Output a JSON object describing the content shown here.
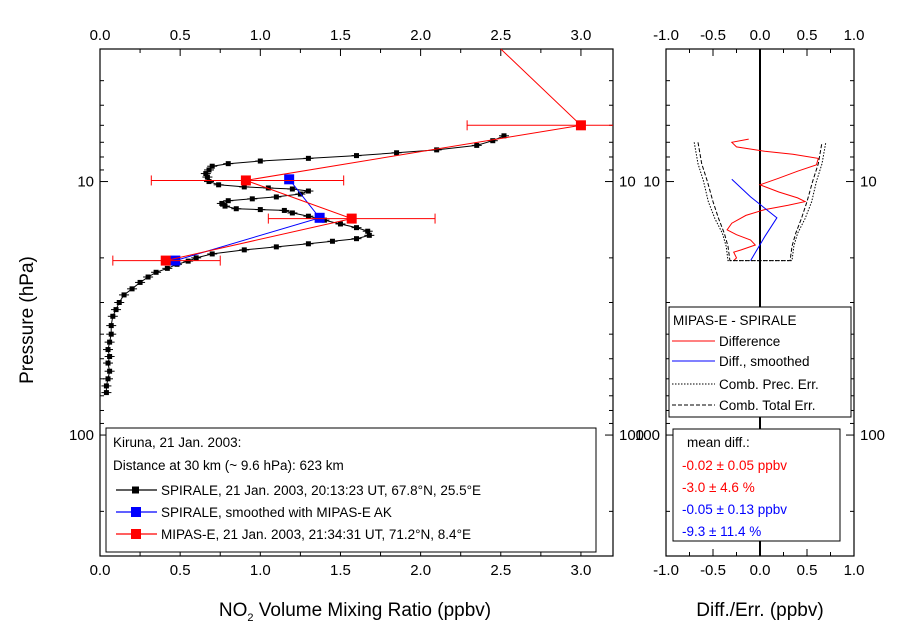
{
  "chart_data": [
    {
      "type": "line",
      "xlabel_main": "NO",
      "xlabel_sub": "2",
      "xlabel_rest": " Volume Mixing Ratio (ppbv)",
      "ylabel": "Pressure (hPa)",
      "xlim": [
        0.0,
        3.2
      ],
      "ylim": [
        3.0,
        300.0
      ],
      "y_scale": "log",
      "x_ticks": [
        "0.0",
        "0.5",
        "1.0",
        "1.5",
        "2.0",
        "2.5",
        "3.0"
      ],
      "y_tick_labels": [
        "10",
        "100"
      ],
      "legend": {
        "title_line1": "Kiruna, 21 Jan. 2003:",
        "title_line2": "Distance at 30 km (~ 9.6 hPa): 623 km",
        "entries": [
          "SPIRALE, 21 Jan. 2003, 20:13:23 UT, 67.8°N, 25.5°E",
          "SPIRALE, smoothed with MIPAS-E AK",
          "MIPAS-E, 21 Jan. 2003, 21:34:31 UT, 71.2°N, 8.4°E"
        ],
        "position": "bottom-left"
      },
      "series": [
        {
          "color": "#000000",
          "marker": "square-small",
          "points": [
            [
              2.52,
              6.6
            ],
            [
              2.45,
              6.9
            ],
            [
              2.35,
              7.2
            ],
            [
              2.1,
              7.5
            ],
            [
              1.85,
              7.7
            ],
            [
              1.6,
              7.9
            ],
            [
              1.3,
              8.1
            ],
            [
              1.0,
              8.3
            ],
            [
              0.8,
              8.5
            ],
            [
              0.7,
              8.7
            ],
            [
              0.68,
              9.0
            ],
            [
              0.66,
              9.3
            ],
            [
              0.67,
              9.6
            ],
            [
              0.68,
              10.0
            ],
            [
              0.74,
              10.3
            ],
            [
              0.9,
              10.5
            ],
            [
              1.05,
              10.6
            ],
            [
              1.2,
              10.7
            ],
            [
              1.3,
              10.9
            ],
            [
              1.25,
              11.2
            ],
            [
              1.1,
              11.5
            ],
            [
              0.95,
              11.7
            ],
            [
              0.8,
              11.9
            ],
            [
              0.76,
              12.2
            ],
            [
              0.78,
              12.5
            ],
            [
              0.85,
              12.8
            ],
            [
              1.0,
              12.9
            ],
            [
              1.15,
              13.0
            ],
            [
              1.2,
              13.3
            ],
            [
              1.3,
              13.7
            ],
            [
              1.4,
              14.2
            ],
            [
              1.5,
              14.7
            ],
            [
              1.6,
              15.2
            ],
            [
              1.67,
              15.7
            ],
            [
              1.68,
              16.3
            ],
            [
              1.6,
              16.8
            ],
            [
              1.45,
              17.2
            ],
            [
              1.3,
              17.6
            ],
            [
              1.1,
              18.1
            ],
            [
              0.9,
              18.6
            ],
            [
              0.7,
              19.3
            ],
            [
              0.6,
              20.0
            ],
            [
              0.55,
              20.6
            ],
            [
              0.48,
              21.2
            ],
            [
              0.42,
              22.0
            ],
            [
              0.35,
              22.8
            ],
            [
              0.3,
              23.8
            ],
            [
              0.25,
              25.0
            ],
            [
              0.2,
              26.5
            ],
            [
              0.15,
              28.0
            ],
            [
              0.12,
              30.0
            ],
            [
              0.1,
              32.0
            ],
            [
              0.08,
              34.0
            ],
            [
              0.07,
              37.0
            ],
            [
              0.07,
              40.0
            ],
            [
              0.06,
              43.0
            ],
            [
              0.05,
              46.0
            ],
            [
              0.06,
              49.0
            ],
            [
              0.05,
              52.0
            ],
            [
              0.06,
              56.0
            ],
            [
              0.05,
              60.0
            ],
            [
              0.04,
              64.0
            ],
            [
              0.04,
              68.0
            ]
          ]
        },
        {
          "color": "#0000ff",
          "marker": "square",
          "points": [
            [
              1.18,
              9.8
            ],
            [
              1.37,
              13.9
            ],
            [
              0.47,
              20.5
            ]
          ]
        },
        {
          "color": "#ff0000",
          "marker": "square",
          "points": [
            [
              2.5,
              3.0
            ],
            [
              3.0,
              6.0
            ],
            [
              0.91,
              9.9
            ],
            [
              1.57,
              14.0
            ],
            [
              0.41,
              20.5
            ]
          ],
          "markers_at": [
            1,
            2,
            3,
            4
          ],
          "xerr": [
            [
              2.29,
              3.6
            ],
            [
              0.32,
              1.52
            ],
            [
              1.05,
              2.09
            ],
            [
              0.08,
              0.75
            ]
          ]
        }
      ]
    },
    {
      "type": "line",
      "xlabel": "Diff./Err. (ppbv)",
      "xlim": [
        -1.0,
        1.0
      ],
      "ylim": [
        3.0,
        300.0
      ],
      "y_scale": "log",
      "x_ticks": [
        "-1.0",
        "-0.5",
        "0.0",
        "0.5",
        "1.0"
      ],
      "y_tick_labels": [
        "10",
        "100"
      ],
      "legend": {
        "title": "MIPAS-E - SPIRALE",
        "entries": [
          "Difference",
          "Diff., smoothed",
          "Comb. Prec. Err.",
          "Comb. Total Err."
        ],
        "position": "middle"
      },
      "mean_diff": {
        "title": "mean diff.:",
        "lines": [
          {
            "text": "-0.02 ± 0.05 ppbv",
            "color": "#ff0000"
          },
          {
            "text": "-3.0 ± 4.6 %",
            "color": "#ff0000"
          },
          {
            "text": "-0.05 ± 0.13 ppbv",
            "color": "#0000ff"
          },
          {
            "text": "-9.3 ± 11.4 %",
            "color": "#0000ff"
          }
        ]
      },
      "series": [
        {
          "name": "Difference",
          "color": "#ff0000",
          "style": "solid",
          "points": [
            [
              -0.12,
              6.8
            ],
            [
              -0.3,
              7.0
            ],
            [
              -0.25,
              7.3
            ],
            [
              0.05,
              7.6
            ],
            [
              0.35,
              7.8
            ],
            [
              0.62,
              8.1
            ],
            [
              0.6,
              8.6
            ],
            [
              0.4,
              9.1
            ],
            [
              0.2,
              9.7
            ],
            [
              0.0,
              10.3
            ],
            [
              0.2,
              11.0
            ],
            [
              0.4,
              11.6
            ],
            [
              0.48,
              12.0
            ],
            [
              0.3,
              12.4
            ],
            [
              0.05,
              12.9
            ],
            [
              -0.15,
              13.6
            ],
            [
              -0.3,
              14.6
            ],
            [
              -0.35,
              15.5
            ],
            [
              -0.25,
              16.2
            ],
            [
              -0.1,
              17.0
            ],
            [
              -0.05,
              17.8
            ],
            [
              -0.2,
              18.6
            ],
            [
              -0.28,
              19.0
            ],
            [
              -0.25,
              20.0
            ],
            [
              -0.28,
              20.5
            ]
          ]
        },
        {
          "name": "Diff., smoothed",
          "color": "#0000ff",
          "style": "solid",
          "points": [
            [
              -0.3,
              9.8
            ],
            [
              -0.1,
              11.5
            ],
            [
              0.18,
              13.9
            ],
            [
              0.05,
              16.5
            ],
            [
              -0.1,
              20.5
            ]
          ]
        },
        {
          "name": "Comb. Prec. Err.",
          "color": "#000000",
          "style": "dotted",
          "points": [
            [
              -0.7,
              7.0
            ],
            [
              -0.66,
              8.5
            ],
            [
              -0.6,
              10.0
            ],
            [
              -0.55,
              12.0
            ],
            [
              -0.48,
              14.0
            ],
            [
              -0.4,
              16.0
            ],
            [
              -0.36,
              18.0
            ],
            [
              -0.34,
              20.5
            ],
            [
              0.34,
              20.5
            ],
            [
              0.36,
              18.0
            ],
            [
              0.4,
              16.0
            ],
            [
              0.48,
              14.0
            ],
            [
              0.55,
              12.0
            ],
            [
              0.6,
              10.0
            ],
            [
              0.66,
              8.5
            ],
            [
              0.7,
              7.0
            ]
          ]
        },
        {
          "name": "Comb. Total Err.",
          "color": "#000000",
          "style": "dashed",
          "points": [
            [
              -0.66,
              7.0
            ],
            [
              -0.62,
              8.5
            ],
            [
              -0.56,
              10.0
            ],
            [
              -0.5,
              12.0
            ],
            [
              -0.44,
              14.0
            ],
            [
              -0.38,
              16.0
            ],
            [
              -0.34,
              18.0
            ],
            [
              -0.32,
              20.5
            ],
            [
              0.32,
              20.5
            ],
            [
              0.34,
              18.0
            ],
            [
              0.38,
              16.0
            ],
            [
              0.44,
              14.0
            ],
            [
              0.5,
              12.0
            ],
            [
              0.56,
              10.0
            ],
            [
              0.62,
              8.5
            ],
            [
              0.66,
              7.0
            ]
          ]
        }
      ]
    }
  ]
}
